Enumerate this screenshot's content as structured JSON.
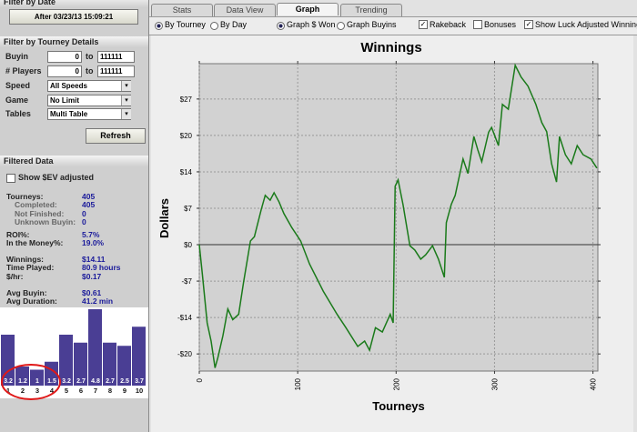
{
  "sidebar": {
    "date_filter": {
      "title": "Filter by Date",
      "button": "After 03/23/13 15:09:21"
    },
    "tourney_filter": {
      "title": "Filter by Tourney Details",
      "ranges": [
        {
          "label": "Buyin",
          "from": "0",
          "to_label": "to",
          "to": "111111"
        },
        {
          "label": "# Players",
          "from": "0",
          "to_label": "to",
          "to": "111111"
        }
      ],
      "selects": [
        {
          "label": "Speed",
          "value": "All Speeds"
        },
        {
          "label": "Game",
          "value": "No Limit"
        },
        {
          "label": "Tables",
          "value": "Multi Table"
        }
      ],
      "button": "Refresh"
    },
    "filtered": {
      "title": "Filtered Data",
      "checkbox": "Show $EV adjusted",
      "groups": [
        [
          {
            "label": "Tourneys:",
            "value": "405"
          },
          {
            "label": "Completed:",
            "value": "405",
            "indent": true
          },
          {
            "label": "Not Finished:",
            "value": "0",
            "indent": true
          },
          {
            "label": "Unknown Buyin:",
            "value": "0",
            "indent": true
          }
        ],
        [
          {
            "label": "ROI%:",
            "value": "5.7%"
          },
          {
            "label": "In the Money%:",
            "value": "19.0%"
          }
        ],
        [
          {
            "label": "Winnings:",
            "value": "$14.11"
          },
          {
            "label": "Time Played:",
            "value": "80.9 hours"
          },
          {
            "label": "$/hr:",
            "value": "$0.17"
          }
        ],
        [
          {
            "label": "Avg Buyin:",
            "value": "$0.61"
          },
          {
            "label": "Avg Duration:",
            "value": "41.2 min"
          }
        ]
      ]
    }
  },
  "tabs": {
    "items": [
      "Stats",
      "Data View",
      "Graph",
      "Trending"
    ],
    "active": 2
  },
  "options": {
    "radios": [
      {
        "label": "By Tourney",
        "checked": true
      },
      {
        "label": "By Day",
        "checked": false
      },
      {
        "label": "Graph $ Won",
        "checked": true
      },
      {
        "label": "Graph Buyins",
        "checked": false
      }
    ],
    "checkboxes": [
      {
        "label": "Rakeback",
        "checked": true
      },
      {
        "label": "Bonuses",
        "checked": false
      },
      {
        "label": "Show Luck Adjusted Winning",
        "checked": true
      }
    ]
  },
  "chart_data": [
    {
      "type": "line",
      "title": "Winnings",
      "ylabel": "Dollars",
      "xlabel": "Tourneys",
      "x": [
        0,
        3,
        8,
        12,
        16,
        19,
        24,
        29,
        34,
        40,
        45,
        52,
        56,
        63,
        67,
        72,
        76,
        81,
        86,
        94,
        103,
        112,
        126,
        140,
        149,
        161,
        168,
        173,
        179,
        186,
        194,
        197,
        199,
        202,
        207,
        214,
        219,
        225,
        230,
        237,
        243,
        249,
        251,
        256,
        260,
        268,
        273,
        279,
        283,
        287,
        294,
        297,
        304,
        308,
        314,
        321,
        327,
        334,
        342,
        348,
        353,
        358,
        363,
        366,
        372,
        378,
        384,
        390,
        398,
        404
      ],
      "series": [
        {
          "name": "Winnings",
          "color": "#1a7a1a",
          "values": [
            0,
            -5.3,
            -14.6,
            -18,
            -23,
            -21,
            -17,
            -12,
            -14,
            -13,
            -7,
            0.7,
            1.5,
            6.6,
            9.2,
            8.3,
            9.7,
            8,
            5.8,
            3.2,
            0.7,
            -3.6,
            -8.7,
            -13,
            -15.5,
            -19,
            -18,
            -19.7,
            -15.5,
            -16.3,
            -13,
            -14.6,
            10.9,
            12.1,
            7.5,
            -0.2,
            -1,
            -2.7,
            -1.9,
            -0.2,
            -2.7,
            -6.1,
            4.1,
            7.5,
            9.2,
            16,
            13.3,
            20.2,
            17.7,
            15.5,
            21,
            21.9,
            18.5,
            26.2,
            25.3,
            33.5,
            31.3,
            29.6,
            26.2,
            22.8,
            21.1,
            15.1,
            11.7,
            20.2,
            16.8,
            15.1,
            18.5,
            16.8,
            16,
            14.3
          ]
        }
      ],
      "xlim": [
        0,
        405
      ],
      "ylim": [
        -23.6,
        33.8
      ],
      "xticks": [
        0,
        100,
        200,
        300,
        400
      ],
      "yticks": [
        {
          "value": -20.4,
          "label": "-$20"
        },
        {
          "value": -13.6,
          "label": "-$14"
        },
        {
          "value": -6.8,
          "label": "-$7"
        },
        {
          "value": 0,
          "label": "$0"
        },
        {
          "value": 6.8,
          "label": "$7"
        },
        {
          "value": 13.6,
          "label": "$14"
        },
        {
          "value": 20.4,
          "label": "$20"
        },
        {
          "value": 27.2,
          "label": "$27"
        }
      ],
      "grid": true
    },
    {
      "type": "bar",
      "categories": [
        "1",
        "2",
        "3",
        "4",
        "5",
        "6",
        "7",
        "8",
        "9",
        "10"
      ],
      "values": [
        3.2,
        1.2,
        1.0,
        1.5,
        3.2,
        2.7,
        4.8,
        2.7,
        2.5,
        3.7
      ],
      "color": "#4a3e94"
    }
  ]
}
